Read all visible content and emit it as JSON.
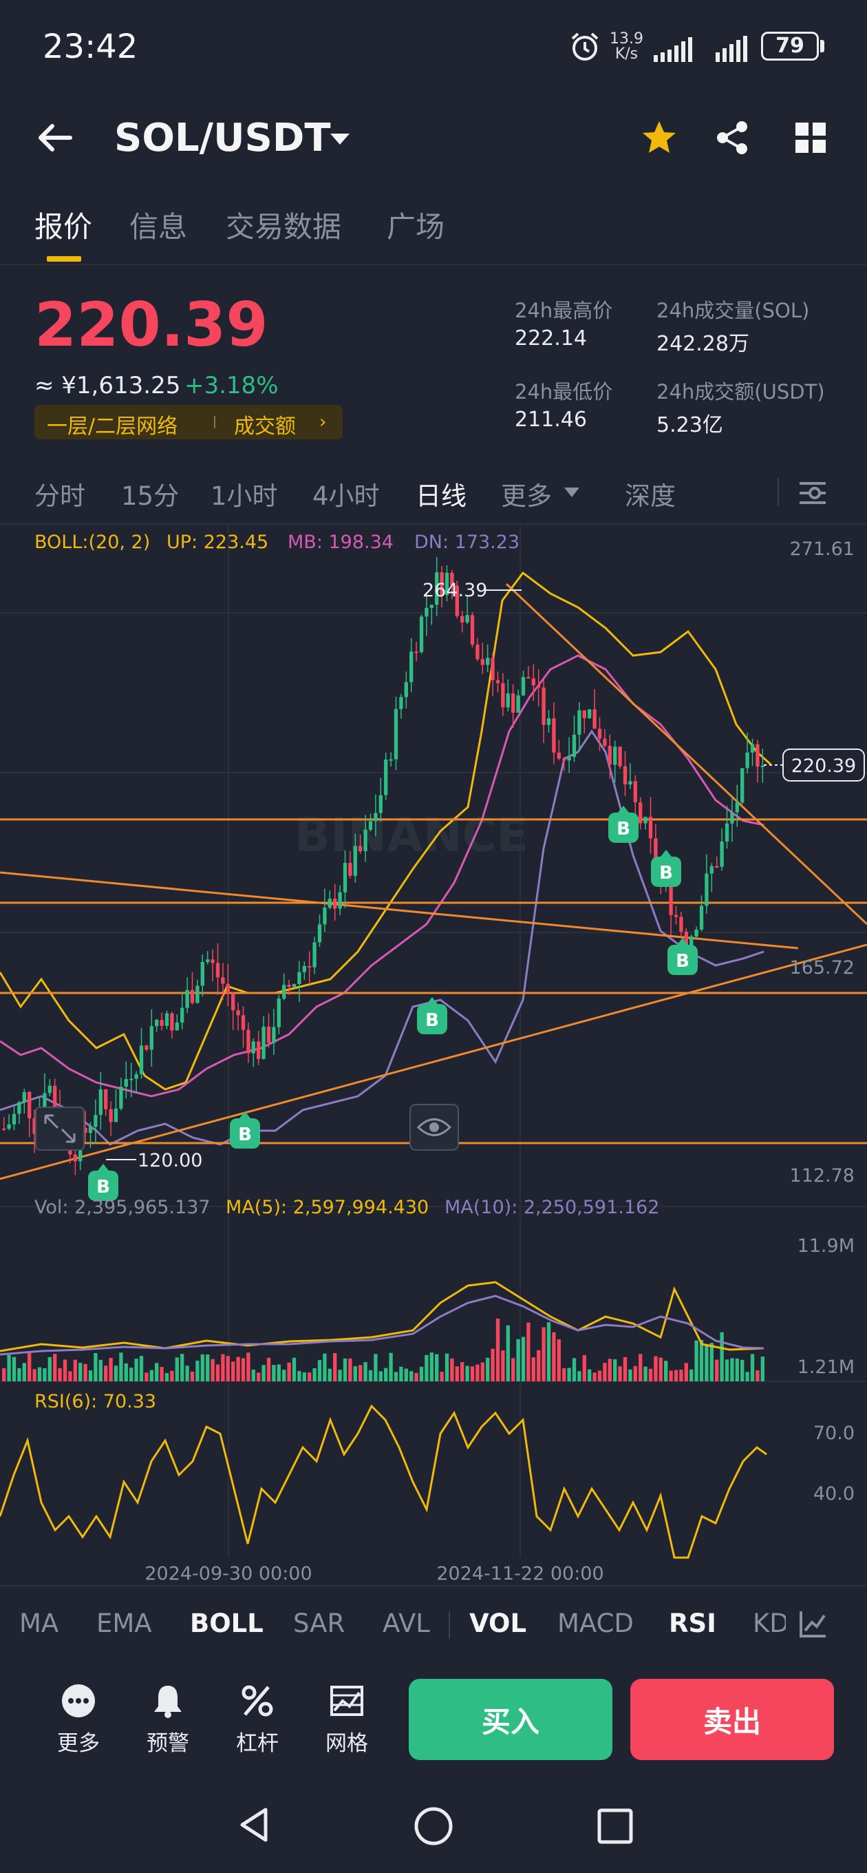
{
  "status_bar": {
    "time": "23:42",
    "net_speed_value": "13.9",
    "net_speed_unit": "K/s",
    "battery": "79"
  },
  "header": {
    "pair": "SOL/USDT"
  },
  "tabs": [
    {
      "label": "报价",
      "active": true
    },
    {
      "label": "信息",
      "active": false
    },
    {
      "label": "交易数据",
      "active": false
    },
    {
      "label": "广场",
      "active": false
    }
  ],
  "price": {
    "last": "220.39",
    "cny": "≈ ¥1,613.25",
    "change": "+3.18%",
    "tag_network": "一层/二层网络",
    "tag_volume": "成交额"
  },
  "stats": {
    "high_label": "24h最高价",
    "high_value": "222.14",
    "vol_sol_label": "24h成交量(SOL)",
    "vol_sol_value": "242.28万",
    "low_label": "24h最低价",
    "low_value": "211.46",
    "vol_usdt_label": "24h成交额(USDT)",
    "vol_usdt_value": "5.23亿"
  },
  "intervals": [
    {
      "label": "分时",
      "active": false
    },
    {
      "label": "15分",
      "active": false
    },
    {
      "label": "1小时",
      "active": false
    },
    {
      "label": "4小时",
      "active": false
    },
    {
      "label": "日线",
      "active": true
    },
    {
      "label": "更多",
      "active": false
    },
    {
      "label": "深度",
      "active": false
    }
  ],
  "chart_data": {
    "type": "candlestick",
    "price_axis": {
      "max": 271.61,
      "min": 112.78,
      "marked": 165.72
    },
    "last_price": 220.39,
    "high_label": "264.39",
    "low_label": "120.00",
    "boll": {
      "label": "BOLL:(20, 2)",
      "up": "UP: 223.45",
      "mb": "MB: 198.34",
      "dn": "DN: 173.23"
    },
    "volume": {
      "vol": "Vol: 2,395,965.137",
      "ma5": "MA(5): 2,597,994.430",
      "ma10": "MA(10): 2,250,591.162",
      "axis_max": "11.9M",
      "axis_min": "1.21M"
    },
    "rsi": {
      "label": "RSI(6): 70.33",
      "level_high": "70.0",
      "level_low": "40.0"
    },
    "x_labels": [
      "2024-09-30 00:00",
      "2024-11-22 00:00"
    ],
    "watermark": "BINANCE",
    "close_path": [
      127,
      130,
      135,
      128,
      140,
      132,
      124,
      122,
      128,
      134,
      130,
      136,
      142,
      146,
      152,
      156,
      150,
      158,
      162,
      170,
      166,
      162,
      155,
      150,
      146,
      150,
      156,
      162,
      166,
      170,
      176,
      182,
      188,
      192,
      196,
      204,
      212,
      226,
      238,
      248,
      256,
      262,
      264,
      258,
      254,
      246,
      240,
      236,
      232,
      236,
      240,
      230,
      224,
      218,
      226,
      232,
      228,
      224,
      218,
      212,
      206,
      200,
      190,
      186,
      178,
      174,
      182,
      190,
      196,
      204,
      212,
      220,
      220
    ],
    "colors": {
      "up": "#2ebd85",
      "down": "#f6465d",
      "up_band": "#f0b90b",
      "mid_band": "#d65ab4",
      "dn_band": "#8e7cc3",
      "trend": "#f08a2c"
    },
    "buy_marker": "B"
  },
  "indicator_tabs": [
    {
      "label": "MA",
      "active": false
    },
    {
      "label": "EMA",
      "active": false
    },
    {
      "label": "BOLL",
      "active": true
    },
    {
      "label": "SAR",
      "active": false
    },
    {
      "label": "AVL",
      "active": false
    },
    {
      "label": "VOL",
      "active": true
    },
    {
      "label": "MACD",
      "active": false
    },
    {
      "label": "RSI",
      "active": true
    },
    {
      "label": "KD",
      "active": false
    }
  ],
  "actions": [
    {
      "label": "更多",
      "icon": "more-icon"
    },
    {
      "label": "预警",
      "icon": "bell-icon"
    },
    {
      "label": "杠杆",
      "icon": "leverage-icon"
    },
    {
      "label": "网格",
      "icon": "grid-trading-icon"
    }
  ],
  "buttons": {
    "buy": "买入",
    "sell": "卖出"
  }
}
